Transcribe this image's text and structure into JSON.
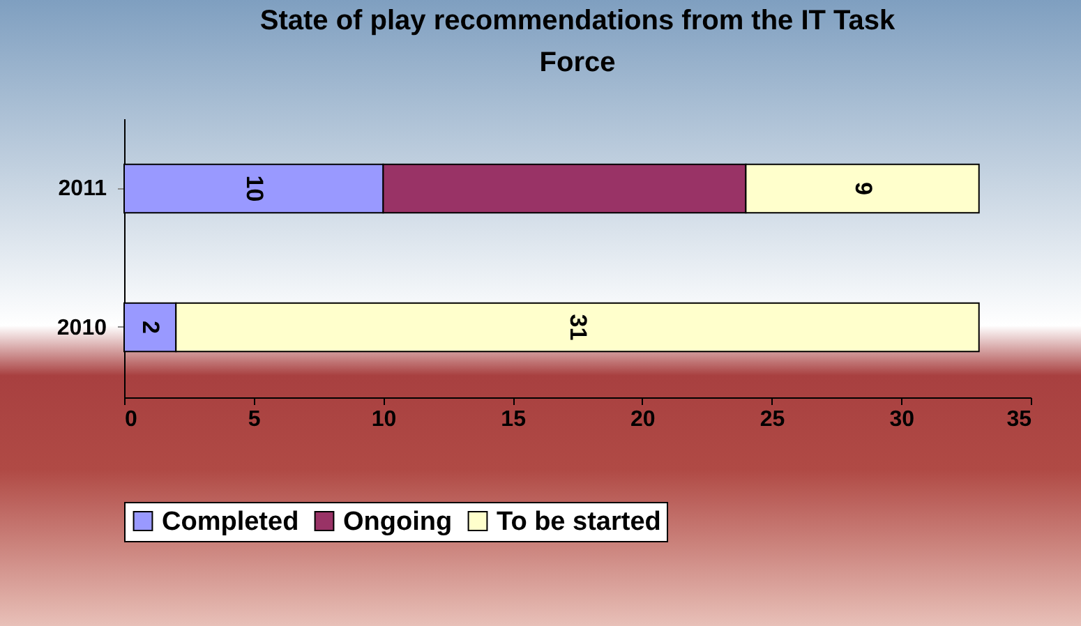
{
  "chart_data": {
    "type": "bar",
    "orientation": "horizontal",
    "stacked": true,
    "title": "State of play recommendations from the IT Task Force",
    "categories": [
      "2011",
      "2010"
    ],
    "series": [
      {
        "name": "Completed",
        "color": "#9999ff",
        "values": [
          10,
          2
        ],
        "value_labels": [
          "10",
          "2"
        ]
      },
      {
        "name": "Ongoing",
        "color": "#993366",
        "values": [
          14,
          null
        ],
        "value_labels": [
          null,
          null
        ]
      },
      {
        "name": "To be started",
        "color": "#ffffcc",
        "values": [
          9,
          31
        ],
        "value_labels": [
          "9",
          "31"
        ]
      }
    ],
    "xlim": [
      0,
      35
    ],
    "xticks": [
      0,
      5,
      10,
      15,
      20,
      25,
      30,
      35
    ],
    "grid": false,
    "legend": "bottom"
  }
}
